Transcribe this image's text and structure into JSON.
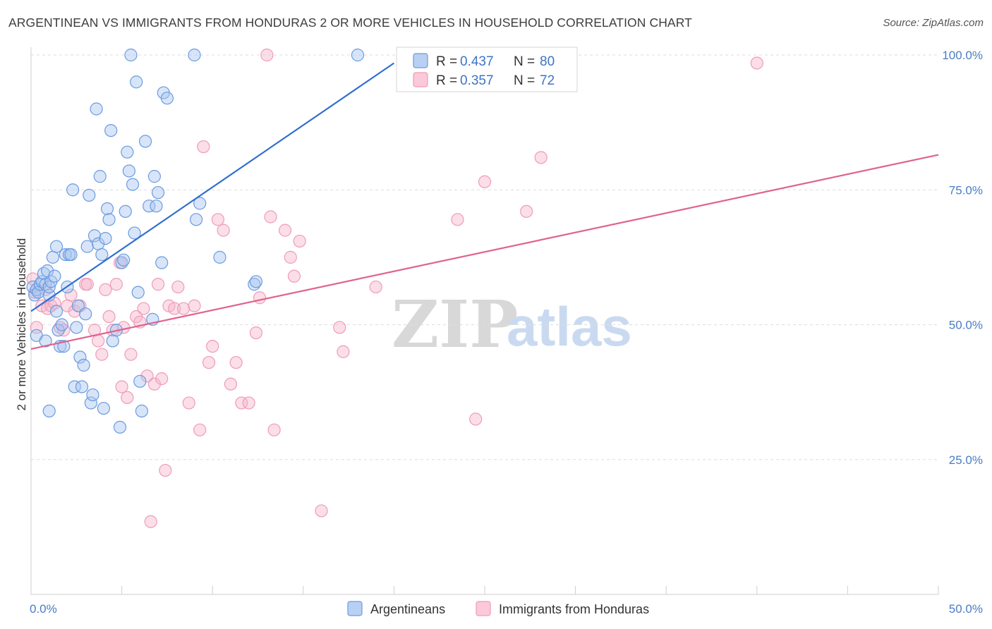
{
  "header": {
    "title": "ARGENTINEAN VS IMMIGRANTS FROM HONDURAS 2 OR MORE VEHICLES IN HOUSEHOLD CORRELATION CHART",
    "source": "Source: ZipAtlas.com"
  },
  "watermark": {
    "zip": "ZIP",
    "atlas": "atlas"
  },
  "chart_data": {
    "type": "scatter",
    "title": "ARGENTINEAN VS IMMIGRANTS FROM HONDURAS 2 OR MORE VEHICLES IN HOUSEHOLD CORRELATION CHART",
    "xlabel": "",
    "ylabel": "2 or more Vehicles in Household",
    "xlim": [
      0,
      50
    ],
    "ylim": [
      0,
      105
    ],
    "x_tick_labels": [
      "0.0%",
      "50.0%"
    ],
    "x_tick_values": [
      0,
      50
    ],
    "y_tick_labels": [
      "25.0%",
      "50.0%",
      "75.0%",
      "100.0%"
    ],
    "y_tick_values": [
      25,
      50,
      75,
      100
    ],
    "grid": true,
    "legend_placement": "top-center",
    "colors": {
      "blue": "#6a9be0",
      "blue_line": "#2f6fcf",
      "pink": "#ee9cb8",
      "pink_line": "#e0628e"
    },
    "series": [
      {
        "name": "Argentineans",
        "legend_r": "R = ",
        "r_value": "0.437",
        "legend_n": "N = ",
        "n_value": "80",
        "trend": {
          "x": [
            0,
            20
          ],
          "y": [
            52.5,
            98.5
          ]
        },
        "points": [
          [
            0.1,
            57.0
          ],
          [
            0.2,
            55.5
          ],
          [
            0.3,
            56.5
          ],
          [
            0.3,
            48.0
          ],
          [
            0.4,
            56.0
          ],
          [
            0.5,
            57.5
          ],
          [
            0.6,
            58.0
          ],
          [
            0.7,
            59.5
          ],
          [
            0.8,
            57.5
          ],
          [
            0.9,
            60.0
          ],
          [
            1.0,
            55.5
          ],
          [
            1.0,
            57.0
          ],
          [
            1.1,
            58.0
          ],
          [
            1.2,
            62.5
          ],
          [
            1.3,
            59.0
          ],
          [
            1.4,
            64.5
          ],
          [
            1.5,
            49.0
          ],
          [
            1.6,
            46.0
          ],
          [
            1.7,
            50.0
          ],
          [
            1.8,
            46.0
          ],
          [
            1.9,
            63.0
          ],
          [
            2.0,
            57.0
          ],
          [
            2.1,
            63.0
          ],
          [
            2.2,
            63.0
          ],
          [
            2.3,
            75.0
          ],
          [
            2.4,
            38.5
          ],
          [
            2.5,
            49.5
          ],
          [
            2.6,
            53.5
          ],
          [
            2.7,
            44.0
          ],
          [
            2.8,
            38.5
          ],
          [
            2.9,
            42.5
          ],
          [
            3.0,
            52.0
          ],
          [
            3.1,
            64.5
          ],
          [
            3.2,
            74.0
          ],
          [
            3.3,
            35.5
          ],
          [
            3.4,
            37.0
          ],
          [
            3.5,
            66.5
          ],
          [
            3.6,
            90.0
          ],
          [
            3.7,
            65.0
          ],
          [
            3.8,
            77.5
          ],
          [
            3.9,
            63.0
          ],
          [
            4.0,
            34.5
          ],
          [
            4.1,
            66.0
          ],
          [
            4.2,
            71.5
          ],
          [
            4.3,
            69.5
          ],
          [
            4.4,
            86.0
          ],
          [
            4.5,
            47.0
          ],
          [
            4.7,
            49.0
          ],
          [
            4.9,
            31.0
          ],
          [
            5.0,
            61.5
          ],
          [
            5.1,
            62.0
          ],
          [
            5.2,
            71.0
          ],
          [
            5.3,
            82.0
          ],
          [
            5.4,
            78.5
          ],
          [
            5.5,
            100.0
          ],
          [
            5.6,
            76.0
          ],
          [
            5.7,
            67.0
          ],
          [
            5.8,
            95.0
          ],
          [
            5.9,
            56.0
          ],
          [
            6.0,
            39.5
          ],
          [
            6.1,
            34.0
          ],
          [
            6.3,
            84.0
          ],
          [
            6.5,
            72.0
          ],
          [
            6.7,
            51.0
          ],
          [
            6.8,
            77.5
          ],
          [
            6.9,
            72.0
          ],
          [
            7.0,
            74.5
          ],
          [
            7.2,
            61.5
          ],
          [
            7.3,
            93.0
          ],
          [
            7.5,
            92.0
          ],
          [
            9.0,
            100.0
          ],
          [
            9.1,
            69.5
          ],
          [
            9.3,
            72.5
          ],
          [
            10.4,
            62.5
          ],
          [
            12.3,
            57.5
          ],
          [
            12.4,
            58.0
          ],
          [
            18.0,
            100.0
          ],
          [
            1.0,
            34.0
          ],
          [
            1.4,
            52.5
          ],
          [
            0.8,
            47.0
          ]
        ]
      },
      {
        "name": "Immigrants from Honduras",
        "legend_r": "R = ",
        "r_value": "0.357",
        "legend_n": "N = ",
        "n_value": "72",
        "trend": {
          "x": [
            0,
            50
          ],
          "y": [
            45.5,
            81.5
          ]
        },
        "points": [
          [
            0.1,
            58.5
          ],
          [
            0.2,
            56.0
          ],
          [
            0.3,
            49.5
          ],
          [
            0.6,
            53.5
          ],
          [
            0.8,
            56.5
          ],
          [
            0.9,
            53.0
          ],
          [
            1.1,
            53.5
          ],
          [
            1.3,
            54.0
          ],
          [
            1.6,
            49.5
          ],
          [
            1.8,
            49.0
          ],
          [
            2.0,
            53.5
          ],
          [
            2.2,
            55.5
          ],
          [
            2.4,
            52.5
          ],
          [
            2.7,
            53.5
          ],
          [
            3.0,
            57.5
          ],
          [
            3.1,
            57.5
          ],
          [
            3.5,
            49.0
          ],
          [
            3.7,
            47.0
          ],
          [
            3.9,
            44.5
          ],
          [
            4.1,
            56.5
          ],
          [
            4.3,
            51.5
          ],
          [
            4.5,
            49.0
          ],
          [
            4.7,
            57.5
          ],
          [
            4.9,
            61.5
          ],
          [
            5.0,
            38.5
          ],
          [
            5.1,
            49.5
          ],
          [
            5.3,
            36.5
          ],
          [
            5.5,
            44.5
          ],
          [
            5.8,
            51.5
          ],
          [
            6.0,
            50.5
          ],
          [
            6.2,
            53.0
          ],
          [
            6.4,
            40.5
          ],
          [
            6.6,
            13.5
          ],
          [
            6.8,
            39.0
          ],
          [
            7.0,
            57.5
          ],
          [
            7.2,
            40.0
          ],
          [
            7.4,
            23.0
          ],
          [
            7.6,
            53.5
          ],
          [
            7.9,
            53.0
          ],
          [
            8.1,
            57.0
          ],
          [
            8.4,
            53.0
          ],
          [
            8.7,
            35.5
          ],
          [
            9.0,
            53.5
          ],
          [
            9.3,
            30.5
          ],
          [
            9.5,
            83.0
          ],
          [
            9.8,
            43.0
          ],
          [
            10.0,
            46.0
          ],
          [
            10.3,
            69.5
          ],
          [
            10.6,
            67.5
          ],
          [
            11.0,
            39.0
          ],
          [
            11.3,
            43.0
          ],
          [
            11.6,
            35.5
          ],
          [
            12.0,
            35.5
          ],
          [
            12.4,
            48.5
          ],
          [
            12.6,
            55.0
          ],
          [
            13.0,
            100.0
          ],
          [
            13.2,
            70.0
          ],
          [
            13.4,
            30.5
          ],
          [
            14.0,
            67.5
          ],
          [
            14.3,
            62.5
          ],
          [
            14.5,
            59.0
          ],
          [
            14.8,
            65.5
          ],
          [
            16.0,
            15.5
          ],
          [
            17.0,
            49.5
          ],
          [
            17.2,
            45.0
          ],
          [
            19.0,
            57.0
          ],
          [
            23.5,
            69.5
          ],
          [
            24.5,
            32.5
          ],
          [
            25.0,
            76.5
          ],
          [
            27.3,
            71.0
          ],
          [
            28.1,
            81.0
          ],
          [
            40.0,
            98.5
          ]
        ]
      }
    ]
  }
}
